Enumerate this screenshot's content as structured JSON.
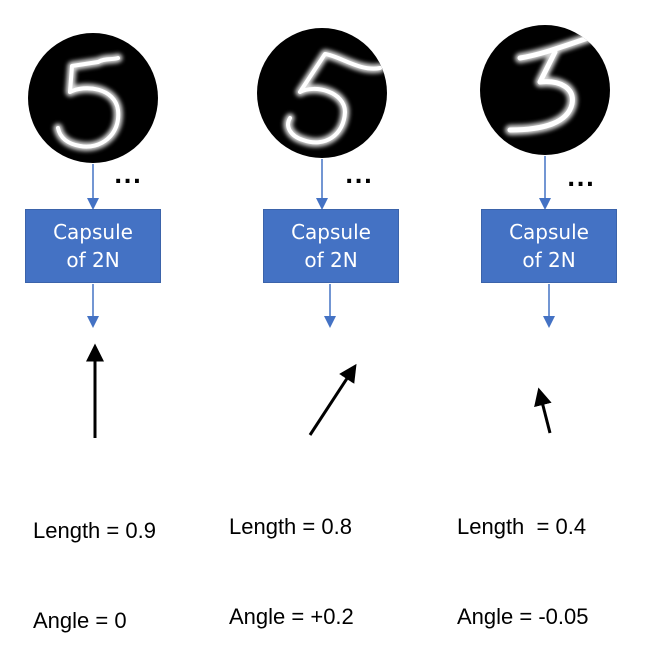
{
  "columns": [
    {
      "digit": "5",
      "capsule_line1": "Capsule",
      "capsule_line2": "of 2N",
      "ellipsis": "...",
      "length_text": "Length = 0.9",
      "angle_text": "Angle = 0",
      "vector_length": 0.9,
      "vector_angle": 0
    },
    {
      "digit": "5",
      "capsule_line1": "Capsule",
      "capsule_line2": "of 2N",
      "ellipsis": "...",
      "length_text": "Length = 0.8",
      "angle_text": "Angle = +0.2",
      "vector_length": 0.8,
      "vector_angle": 0.2
    },
    {
      "digit": "3",
      "capsule_line1": "Capsule",
      "capsule_line2": "of 2N",
      "ellipsis": "...",
      "length_text": "Length  = 0.4",
      "angle_text": "Angle = -0.05",
      "vector_length": 0.4,
      "vector_angle": -0.05
    }
  ],
  "colors": {
    "capsule_fill": "#4472c4",
    "arrow_blue": "#4472c4",
    "vector_black": "#000000",
    "image_bg": "#000000"
  }
}
